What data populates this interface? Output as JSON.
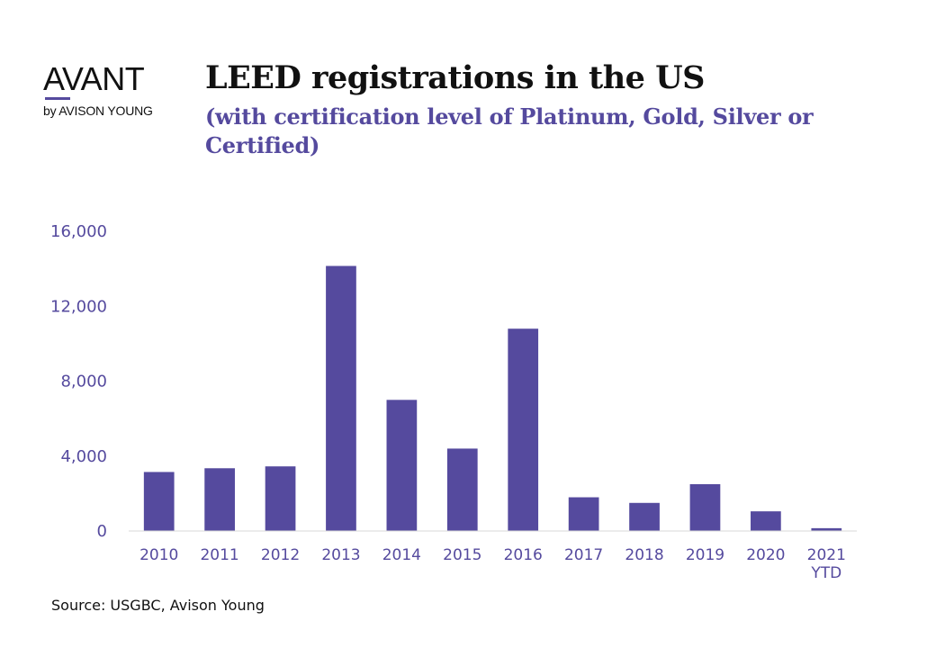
{
  "logo": {
    "word": "AVANT",
    "sub": "by AVISON YOUNG"
  },
  "chart_data": {
    "type": "bar",
    "title": "LEED registrations in the US",
    "subtitle": "(with certification level of Platinum, Gold, Silver or Certified)",
    "categories": [
      [
        "2010"
      ],
      [
        "2011"
      ],
      [
        "2012"
      ],
      [
        "2013"
      ],
      [
        "2014"
      ],
      [
        "2015"
      ],
      [
        "2016"
      ],
      [
        "2017"
      ],
      [
        "2018"
      ],
      [
        "2019"
      ],
      [
        "2020"
      ],
      [
        "2021",
        "YTD"
      ]
    ],
    "values": [
      3150,
      3350,
      3450,
      14150,
      7000,
      4400,
      10800,
      1800,
      1500,
      2500,
      1050,
      150
    ],
    "xlabel": "",
    "ylabel": "",
    "ylim": [
      0,
      16000
    ],
    "yticks": [
      0,
      4000,
      8000,
      12000,
      16000
    ],
    "ytick_labels": [
      "0",
      "4,000",
      "8,000",
      "12,000",
      "16,000"
    ],
    "grid": false,
    "legend": "none",
    "colors": {
      "bar": "#554a9e",
      "axis": "#d9d9d9",
      "tick_text": "#554a9e",
      "subtitle": "#554a9e"
    }
  },
  "source": "Source: USGBC, Avison Young"
}
